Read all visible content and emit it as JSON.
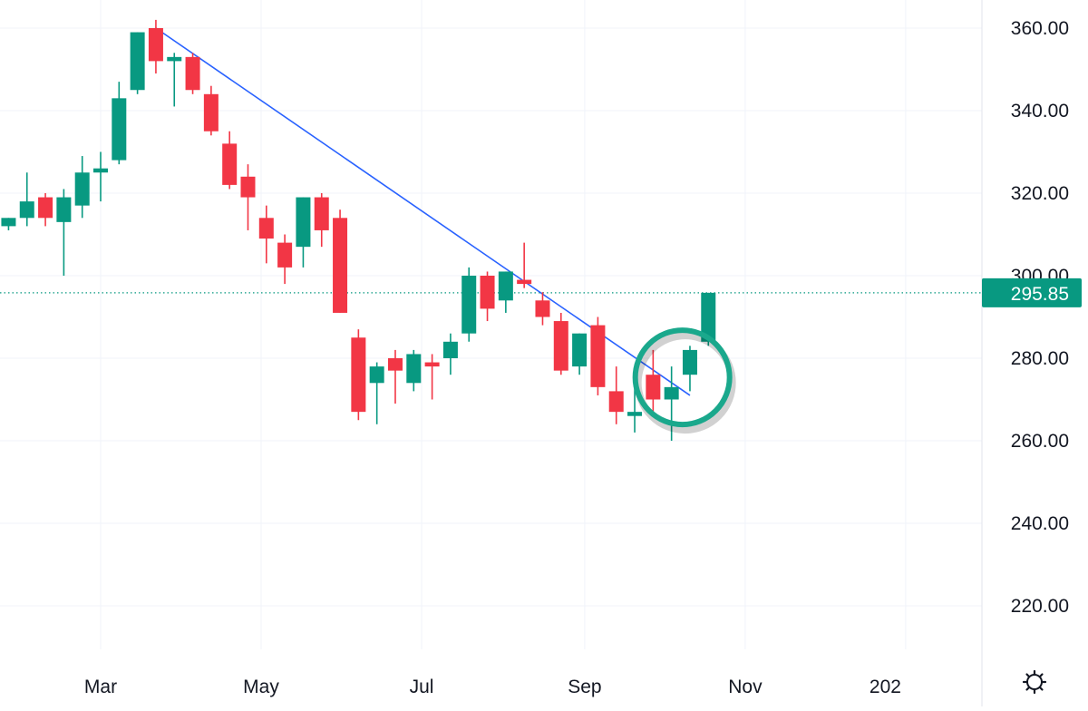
{
  "chart_data": {
    "type": "candlestick",
    "title": "",
    "xlabel": "",
    "ylabel": "",
    "ylim": [
      205,
      367
    ],
    "y_ticks": [
      "360.00",
      "340.00",
      "320.00",
      "300.00",
      "280.00",
      "260.00",
      "240.00",
      "220.00"
    ],
    "x_tick_labels": [
      "Mar",
      "May",
      "Jul",
      "Sep",
      "Nov",
      "202"
    ],
    "grid": true,
    "up_color": "#089981",
    "down_color": "#f23645",
    "trendline_color": "#2962ff",
    "highlight_circle_color": "#1aa88c",
    "last_price": {
      "value": 295.85,
      "label": "295.85",
      "color": "#089981"
    },
    "trendline": {
      "from": {
        "date": "2021-03-22",
        "price": 360.0
      },
      "to": {
        "date": "2021-10-11",
        "price": 271.0
      }
    },
    "highlight": {
      "date": "2021-10-04",
      "price": 278.0
    },
    "candles": [
      {
        "date": "2021-01-25",
        "open": 312,
        "high": 314,
        "low": 311,
        "close": 314
      },
      {
        "date": "2021-02-01",
        "open": 314,
        "high": 325,
        "low": 312,
        "close": 318
      },
      {
        "date": "2021-02-08",
        "open": 319,
        "high": 320,
        "low": 312,
        "close": 314
      },
      {
        "date": "2021-02-15",
        "open": 313,
        "high": 321,
        "low": 300,
        "close": 319
      },
      {
        "date": "2021-02-22",
        "open": 317,
        "high": 329,
        "low": 314,
        "close": 325
      },
      {
        "date": "2021-03-01",
        "open": 325,
        "high": 330,
        "low": 318,
        "close": 326
      },
      {
        "date": "2021-03-08",
        "open": 328,
        "high": 347,
        "low": 327,
        "close": 343
      },
      {
        "date": "2021-03-15",
        "open": 345,
        "high": 359,
        "low": 344,
        "close": 359
      },
      {
        "date": "2021-03-22",
        "open": 360,
        "high": 362,
        "low": 349,
        "close": 352
      },
      {
        "date": "2021-03-29",
        "open": 352,
        "high": 354,
        "low": 341,
        "close": 353
      },
      {
        "date": "2021-04-05",
        "open": 353,
        "high": 354,
        "low": 344,
        "close": 345
      },
      {
        "date": "2021-04-12",
        "open": 344,
        "high": 346,
        "low": 334,
        "close": 335
      },
      {
        "date": "2021-04-19",
        "open": 332,
        "high": 335,
        "low": 321,
        "close": 322
      },
      {
        "date": "2021-04-26",
        "open": 324,
        "high": 327,
        "low": 311,
        "close": 319
      },
      {
        "date": "2021-05-03",
        "open": 314,
        "high": 317,
        "low": 303,
        "close": 309
      },
      {
        "date": "2021-05-10",
        "open": 308,
        "high": 310,
        "low": 298,
        "close": 302
      },
      {
        "date": "2021-05-17",
        "open": 307,
        "high": 319,
        "low": 302,
        "close": 319
      },
      {
        "date": "2021-05-24",
        "open": 319,
        "high": 320,
        "low": 307,
        "close": 311
      },
      {
        "date": "2021-05-31",
        "open": 314,
        "high": 316,
        "low": 291,
        "close": 291
      },
      {
        "date": "2021-06-07",
        "open": 285,
        "high": 287,
        "low": 265,
        "close": 267
      },
      {
        "date": "2021-06-14",
        "open": 274,
        "high": 279,
        "low": 264,
        "close": 278
      },
      {
        "date": "2021-06-21",
        "open": 280,
        "high": 282,
        "low": 269,
        "close": 277
      },
      {
        "date": "2021-06-28",
        "open": 274,
        "high": 282,
        "low": 272,
        "close": 281
      },
      {
        "date": "2021-07-05",
        "open": 279,
        "high": 281,
        "low": 270,
        "close": 278
      },
      {
        "date": "2021-07-12",
        "open": 280,
        "high": 286,
        "low": 276,
        "close": 284
      },
      {
        "date": "2021-07-19",
        "open": 286,
        "high": 302,
        "low": 284,
        "close": 300
      },
      {
        "date": "2021-07-26",
        "open": 300,
        "high": 301,
        "low": 289,
        "close": 292
      },
      {
        "date": "2021-08-02",
        "open": 294,
        "high": 301,
        "low": 291,
        "close": 301
      },
      {
        "date": "2021-08-09",
        "open": 299,
        "high": 308,
        "low": 297,
        "close": 298
      },
      {
        "date": "2021-08-16",
        "open": 294,
        "high": 296,
        "low": 288,
        "close": 290
      },
      {
        "date": "2021-08-23",
        "open": 289,
        "high": 291,
        "low": 276,
        "close": 277
      },
      {
        "date": "2021-08-30",
        "open": 278,
        "high": 286,
        "low": 276,
        "close": 286
      },
      {
        "date": "2021-09-06",
        "open": 288,
        "high": 290,
        "low": 271,
        "close": 273
      },
      {
        "date": "2021-09-13",
        "open": 272,
        "high": 278,
        "low": 264,
        "close": 267
      },
      {
        "date": "2021-09-20",
        "open": 266,
        "high": 273,
        "low": 262,
        "close": 267
      },
      {
        "date": "2021-09-27",
        "open": 276,
        "high": 282,
        "low": 267,
        "close": 270
      },
      {
        "date": "2021-10-04",
        "open": 270,
        "high": 278,
        "low": 260,
        "close": 273
      },
      {
        "date": "2021-10-11",
        "open": 276,
        "high": 283,
        "low": 272,
        "close": 282
      },
      {
        "date": "2021-10-18",
        "open": 284,
        "high": 295.85,
        "low": 283,
        "close": 295.85
      }
    ]
  }
}
